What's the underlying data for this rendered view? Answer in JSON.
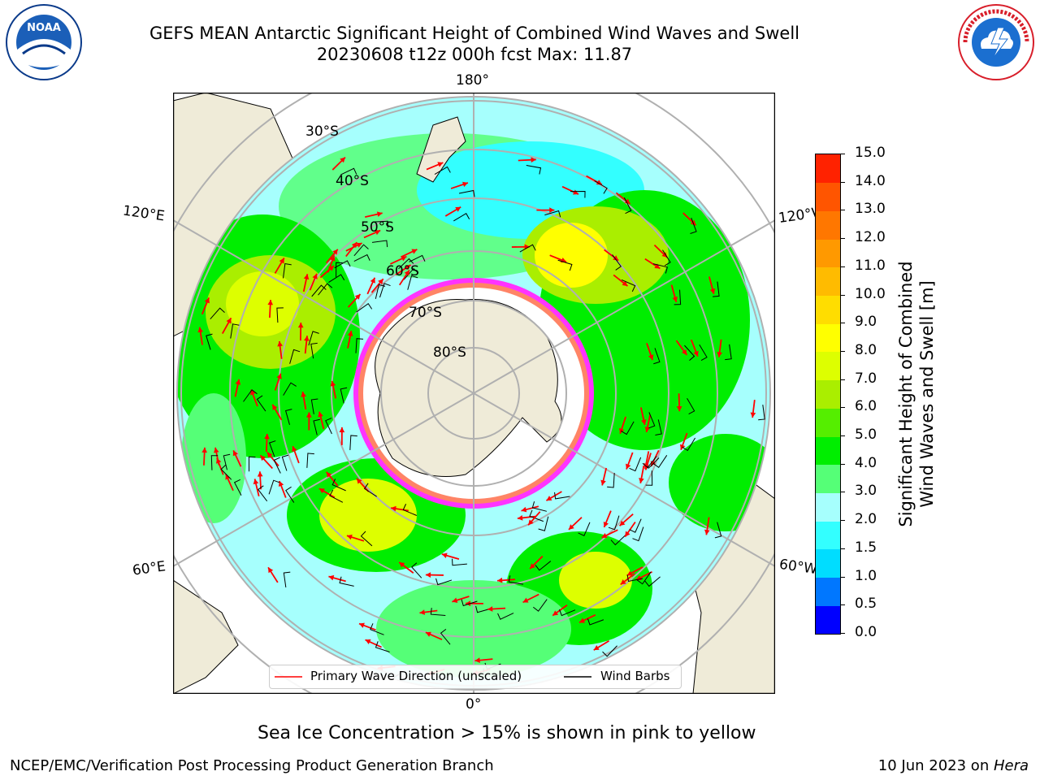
{
  "header": {
    "title_line1": "GEFS MEAN Antarctic Significant Height of Combined Wind Waves and Swell",
    "title_line2": "20230608 t12z 000h fcst   Max: 11.87"
  },
  "logos": {
    "left": {
      "name": "NOAA",
      "ring_text": "NATIONAL OCEANIC AND ATMOSPHERIC ADMINISTRATION · U.S. DEPARTMENT OF COMMERCE",
      "color": "#0a3a8a"
    },
    "right": {
      "name": "NATIONAL WEATHER SERVICE",
      "color": "#d81e2a"
    }
  },
  "map": {
    "projection": "south-polar-stereographic",
    "longitude_labels": [
      "180°",
      "120°E",
      "120°W",
      "60°E",
      "60°W",
      "0°"
    ],
    "latitude_labels": [
      "30°S",
      "40°S",
      "50°S",
      "60°S",
      "70°S",
      "80°S"
    ],
    "legend": {
      "wave_direction": "Primary Wave Direction (unscaled)",
      "wind_barbs": "Wind Barbs"
    },
    "colors": {
      "land": "#efebd8",
      "ocean_low": "#a6fffd",
      "ice": "#ff33ff",
      "arrow": "#ff0000",
      "barb": "#000000"
    }
  },
  "colorbar": {
    "label_line1": "Significant Height of Combined",
    "label_line2": "Wind Waves and Swell [m]",
    "ticks": [
      "0.0",
      "0.5",
      "1.0",
      "1.5",
      "2.0",
      "3.0",
      "4.0",
      "5.0",
      "6.0",
      "7.0",
      "8.0",
      "9.0",
      "10.0",
      "11.0",
      "12.0",
      "13.0",
      "14.0",
      "15.0"
    ],
    "colors": [
      "#0000ff",
      "#0077ff",
      "#00ddff",
      "#33ffff",
      "#a6fffd",
      "#55ff77",
      "#00ee00",
      "#55ee00",
      "#aaee00",
      "#ddff00",
      "#ffff00",
      "#ffdd00",
      "#ffbb00",
      "#ff9900",
      "#ff7700",
      "#ff5500",
      "#ff2200"
    ]
  },
  "sea_ice_note": "Sea Ice Concentration > 15% is shown in pink to yellow",
  "footer": {
    "left": "NCEP/EMC/Verification Post Processing Product Generation Branch",
    "right_prefix": "10 Jun 2023 on ",
    "right_host": "Hera"
  }
}
